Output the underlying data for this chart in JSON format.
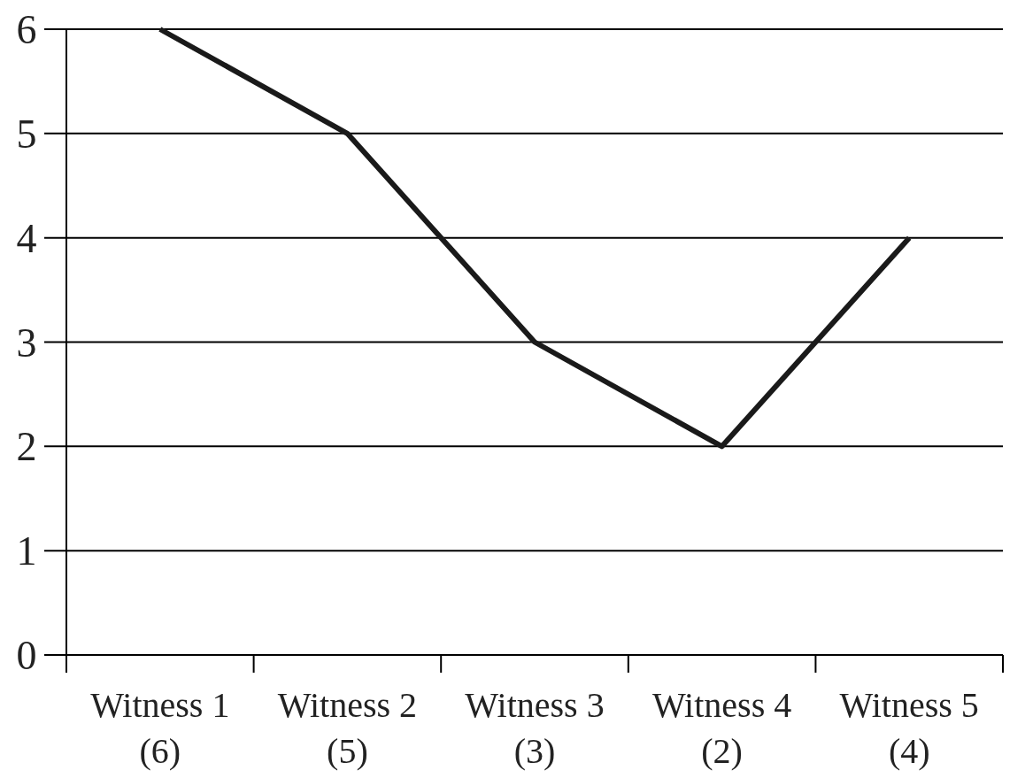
{
  "chart_data": {
    "type": "line",
    "categories": [
      "Witness 1\n(6)",
      "Witness 2\n(5)",
      "Witness 3\n(3)",
      "Witness 4\n(2)",
      "Witness 5\n(4)"
    ],
    "series": [
      {
        "color": "#1a1a1a",
        "values": [
          6,
          5,
          3,
          2,
          4
        ]
      }
    ],
    "ylim": [
      0,
      6
    ],
    "yticks": [
      0,
      1,
      2,
      3,
      4,
      5,
      6
    ],
    "grid": "y",
    "marker": "none",
    "line_style": "solid"
  }
}
